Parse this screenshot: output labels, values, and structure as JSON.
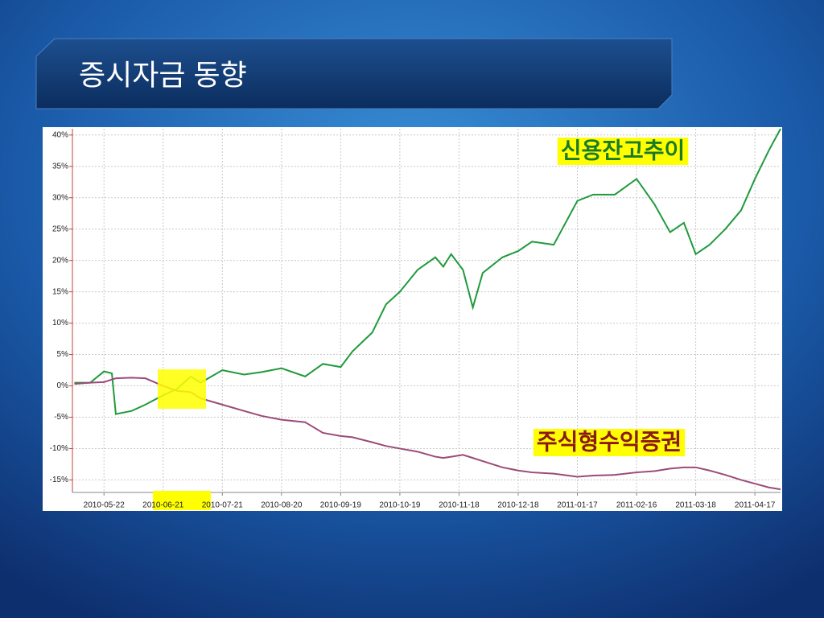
{
  "chart_data": {
    "type": "line",
    "title": "증시자금 동향",
    "x": [
      "2010-05-07",
      "2010-05-15",
      "2010-05-22",
      "2010-05-26",
      "2010-05-28",
      "2010-06-05",
      "2010-06-12",
      "2010-06-21",
      "2010-06-28",
      "2010-07-05",
      "2010-07-10",
      "2010-07-21",
      "2010-08-01",
      "2010-08-10",
      "2010-08-20",
      "2010-09-01",
      "2010-09-10",
      "2010-09-19",
      "2010-09-25",
      "2010-10-05",
      "2010-10-12",
      "2010-10-19",
      "2010-10-28",
      "2010-11-06",
      "2010-11-10",
      "2010-11-14",
      "2010-11-20",
      "2010-11-25",
      "2010-11-30",
      "2010-12-10",
      "2010-12-18",
      "2010-12-25",
      "2011-01-05",
      "2011-01-17",
      "2011-01-25",
      "2011-02-05",
      "2011-02-16",
      "2011-02-25",
      "2011-03-05",
      "2011-03-12",
      "2011-03-18",
      "2011-03-25",
      "2011-04-02",
      "2011-04-10",
      "2011-04-17",
      "2011-04-24",
      "2011-04-30"
    ],
    "series": [
      {
        "name": "신용잔고추이",
        "color": "#1f9a3c",
        "values": [
          0.5,
          0.5,
          2.3,
          2.0,
          -4.5,
          -4.0,
          -3.0,
          -1.5,
          -0.5,
          1.5,
          0.5,
          2.5,
          1.8,
          2.2,
          2.8,
          1.5,
          3.5,
          3.0,
          5.5,
          8.5,
          13.0,
          15.0,
          18.5,
          20.5,
          19.0,
          21.0,
          18.5,
          12.5,
          18.0,
          20.5,
          21.5,
          23.0,
          22.5,
          29.5,
          30.5,
          30.5,
          33.0,
          29.0,
          24.5,
          26.0,
          21.0,
          22.5,
          25.0,
          28.0,
          33.0,
          37.5,
          41.0
        ]
      },
      {
        "name": "주식형수익증권",
        "color": "#9b4a78",
        "values": [
          0.3,
          0.5,
          0.6,
          1.0,
          1.2,
          1.3,
          1.2,
          0.0,
          -0.8,
          -1.0,
          -2.0,
          -3.0,
          -4.0,
          -4.8,
          -5.4,
          -5.8,
          -7.5,
          -8.0,
          -8.2,
          -9.0,
          -9.6,
          -10.0,
          -10.5,
          -11.3,
          -11.5,
          -11.3,
          -11.0,
          -11.5,
          -12.0,
          -13.0,
          -13.5,
          -13.8,
          -14.0,
          -14.5,
          -14.3,
          -14.2,
          -13.8,
          -13.6,
          -13.2,
          -13.0,
          -13.0,
          -13.5,
          -14.2,
          -15.0,
          -15.6,
          -16.2,
          -16.5
        ]
      }
    ],
    "xlim": [
      "2010-05-06",
      "2011-04-30"
    ],
    "xticks": [
      "2010-05-22",
      "2010-06-21",
      "2010-07-21",
      "2010-08-20",
      "2010-09-19",
      "2010-10-19",
      "2010-11-18",
      "2010-12-18",
      "2011-01-17",
      "2011-02-16",
      "2011-03-18",
      "2011-04-17"
    ],
    "ylim": [
      -17,
      41
    ],
    "yticks": [
      {
        "value": 40,
        "label": "40%"
      },
      {
        "value": 35,
        "label": "35%"
      },
      {
        "value": 30,
        "label": "30%"
      },
      {
        "value": 25,
        "label": "25%"
      },
      {
        "value": 20,
        "label": "20%"
      },
      {
        "value": 15,
        "label": "15%"
      },
      {
        "value": 10,
        "label": "10%"
      },
      {
        "value": 5,
        "label": "5%"
      },
      {
        "value": 0,
        "label": "0%"
      },
      {
        "value": -5,
        "label": "-5%"
      },
      {
        "value": -10,
        "label": "-10%"
      },
      {
        "value": -15,
        "label": "-15%"
      }
    ],
    "grid": true
  }
}
